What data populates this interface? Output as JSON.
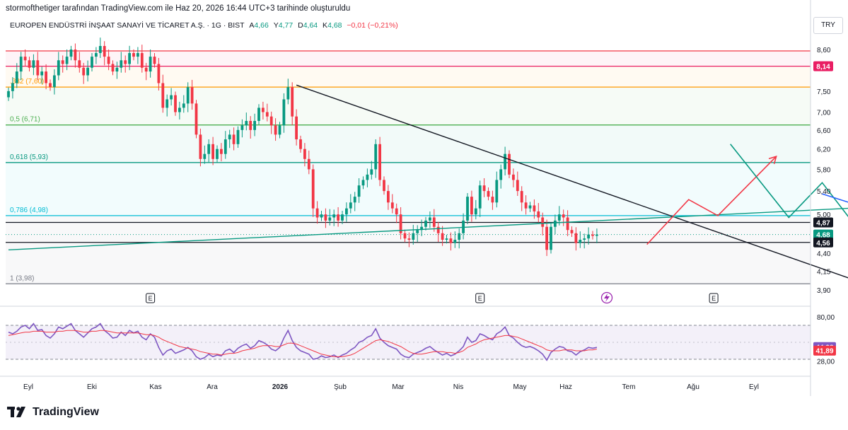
{
  "credit": "stormofthetiger tarafından TradingView.com ile Haz 20, 2026 16:44 UTC+3 tarihinde oluşturuldu",
  "legend": {
    "symbol": "EUROPEN ENDÜSTRİ İNŞAAT SANAYİ VE TİCARET A.Ş. · 1G · BIST",
    "open_label": "A",
    "open": "4,66",
    "high_label": "Y",
    "high": "4,77",
    "low_label": "D",
    "low": "4,64",
    "close_label": "K",
    "close": "4,68",
    "change": "−0,01 (−0,21%)"
  },
  "currency": "TRY",
  "brand": "TradingView",
  "colors": {
    "up": "#089981",
    "down": "#f23645",
    "rsi": "#7e57c2",
    "rsi_ma": "#f23645"
  },
  "icons": {
    "lightning": "lightning-icon",
    "earnings": "earnings-marker-icon",
    "logo": "tradingview-logo-icon"
  },
  "chart_data": {
    "type": "candlestick",
    "interval": "1G",
    "y_scale": "log",
    "ylim": [
      3.75,
      8.6
    ],
    "x_labels": [
      "Eyl",
      "Eki",
      "Kas",
      "Ara",
      "2026",
      "Şub",
      "Mar",
      "Nis",
      "May",
      "Haz",
      "Tem",
      "Ağu",
      "Eyl"
    ],
    "price_ticks": [
      "8,60",
      "7,50",
      "7,00",
      "6,60",
      "6,20",
      "5,80",
      "5,40",
      "5,00",
      "4,40",
      "4,15",
      "3,90"
    ],
    "price_labels": [
      {
        "text": "8,14",
        "value": 8.14,
        "color": "#e91e63"
      },
      {
        "text": "4,87",
        "value": 4.87,
        "color": "#131722"
      },
      {
        "text": "4,68",
        "value": 4.68,
        "color": "#089981"
      },
      {
        "text": "4,56",
        "value": 4.56,
        "color": "#131722"
      }
    ],
    "fibonacci": [
      {
        "label": "",
        "value": 8.56,
        "color": "#f23645"
      },
      {
        "label": "",
        "value": 8.14,
        "color": "#e91e63"
      },
      {
        "label": ".382 (7,60)",
        "value": 7.6,
        "color": "#ff9800"
      },
      {
        "label": "0,5 (6,71)",
        "value": 6.71,
        "color": "#4caf50"
      },
      {
        "label": "0,618 (5,93)",
        "value": 5.93,
        "color": "#089981"
      },
      {
        "label": "0,786 (4,98)",
        "value": 4.98,
        "color": "#00bcd4"
      },
      {
        "label": "1 (3,98)",
        "value": 3.98,
        "color": "#787b86"
      }
    ],
    "horizontal_levels": [
      4.87,
      4.56
    ],
    "close_series": [
      7.5,
      7.7,
      8.0,
      8.4,
      8.3,
      8.1,
      8.3,
      7.9,
      8.0,
      7.7,
      7.6,
      7.9,
      8.3,
      8.2,
      8.4,
      8.6,
      8.3,
      8.1,
      7.9,
      8.1,
      8.4,
      8.5,
      8.7,
      8.4,
      8.2,
      8.0,
      8.1,
      8.3,
      8.2,
      8.5,
      8.4,
      8.5,
      8.1,
      8.0,
      8.4,
      8.2,
      7.7,
      7.1,
      7.3,
      7.4,
      7.0,
      7.1,
      7.2,
      7.6,
      7.2,
      6.5,
      6.0,
      6.1,
      6.3,
      6.0,
      6.2,
      6.1,
      6.4,
      6.5,
      6.3,
      6.6,
      6.7,
      6.8,
      6.6,
      6.8,
      7.1,
      7.0,
      6.9,
      6.7,
      6.5,
      6.7,
      7.3,
      7.6,
      6.9,
      6.4,
      6.2,
      6.0,
      5.8,
      5.1,
      4.95,
      5.0,
      4.9,
      4.95,
      5.0,
      4.9,
      5.0,
      5.1,
      5.2,
      5.3,
      5.5,
      5.6,
      5.7,
      5.8,
      6.3,
      5.6,
      5.4,
      5.2,
      5.1,
      5.0,
      4.7,
      4.62,
      4.6,
      4.7,
      4.75,
      4.8,
      4.9,
      4.95,
      4.8,
      4.7,
      4.6,
      4.62,
      4.55,
      4.6,
      4.7,
      4.9,
      5.3,
      5.0,
      5.1,
      5.5,
      5.4,
      5.3,
      5.2,
      5.6,
      5.8,
      6.1,
      5.7,
      5.6,
      5.4,
      5.2,
      5.1,
      5.15,
      5.05,
      4.95,
      4.8,
      4.45,
      4.8,
      4.9,
      5.0,
      4.95,
      4.75,
      4.7,
      4.55,
      4.6,
      4.62,
      4.68,
      4.66,
      4.68
    ],
    "trendlines": [
      {
        "name": "falling",
        "from": {
          "i": 69,
          "v": 7.65
        },
        "to": {
          "i": 215,
          "v": 3.8
        },
        "color": "#131722"
      },
      {
        "name": "rising",
        "from": {
          "i": 0,
          "v": 4.45
        },
        "to": {
          "i": 285,
          "v": 5.4
        },
        "color": "#089981"
      }
    ],
    "projections": [
      {
        "color": "#f23645",
        "points": [
          [
            153,
            4.53
          ],
          [
            163,
            5.25
          ],
          [
            170,
            4.98
          ],
          [
            184,
            6.05
          ]
        ]
      },
      {
        "color": "#089981",
        "points": [
          [
            173,
            6.3
          ],
          [
            187,
            4.95
          ],
          [
            195,
            5.55
          ],
          [
            202,
            4.9
          ],
          [
            214,
            7.3
          ]
        ]
      },
      {
        "color": "#2962ff",
        "points": [
          [
            195,
            5.35
          ],
          [
            214,
            4.92
          ],
          [
            227,
            7.2
          ]
        ]
      }
    ],
    "events": [
      {
        "label": "E",
        "i": 34
      },
      {
        "label": "E",
        "i": 113
      },
      {
        "label": "E",
        "i": 169
      }
    ],
    "rsi": {
      "value": "44,38",
      "ma": "41,89",
      "ticks": [
        "80,00",
        "28,00"
      ],
      "ylim": [
        20,
        85
      ],
      "upper": 70,
      "lower": 30,
      "values": [
        62,
        60,
        63,
        68,
        70,
        66,
        72,
        64,
        65,
        58,
        55,
        60,
        68,
        66,
        69,
        72,
        64,
        60,
        56,
        61,
        66,
        68,
        72,
        64,
        60,
        55,
        56,
        62,
        58,
        64,
        61,
        63,
        56,
        53,
        60,
        56,
        44,
        35,
        40,
        42,
        37,
        39,
        41,
        44,
        40,
        33,
        30,
        32,
        36,
        33,
        35,
        34,
        40,
        42,
        38,
        43,
        46,
        48,
        43,
        46,
        52,
        50,
        47,
        42,
        40,
        44,
        55,
        64,
        52,
        44,
        40,
        38,
        36,
        30,
        31,
        34,
        32,
        33,
        35,
        32,
        35,
        37,
        41,
        44,
        50,
        52,
        56,
        58,
        66,
        55,
        50,
        46,
        44,
        42,
        36,
        33,
        32,
        36,
        38,
        40,
        43,
        45,
        41,
        38,
        35,
        37,
        34,
        36,
        40,
        45,
        56,
        50,
        52,
        60,
        58,
        55,
        53,
        60,
        63,
        68,
        58,
        55,
        50,
        46,
        44,
        45,
        43,
        40,
        36,
        29,
        38,
        42,
        45,
        44,
        40,
        39,
        35,
        39,
        41,
        44,
        43,
        44
      ],
      "ma_values": [
        58,
        59,
        60,
        61,
        62,
        62,
        63,
        63,
        63,
        62,
        62,
        62,
        63,
        63,
        64,
        64,
        64,
        63,
        62,
        62,
        63,
        63,
        64,
        64,
        63,
        62,
        61,
        61,
        61,
        61,
        61,
        61,
        60,
        59,
        59,
        58,
        56,
        53,
        51,
        49,
        47,
        45,
        44,
        43,
        42,
        41,
        39,
        38,
        37,
        36,
        36,
        35,
        36,
        37,
        37,
        38,
        40,
        41,
        42,
        43,
        45,
        46,
        46,
        46,
        45,
        45,
        47,
        49,
        49,
        48,
        46,
        44,
        42,
        40,
        38,
        36,
        35,
        34,
        33,
        33,
        33,
        34,
        35,
        37,
        40,
        43,
        46,
        49,
        52,
        53,
        52,
        51,
        49,
        47,
        45,
        42,
        39,
        37,
        36,
        36,
        37,
        38,
        39,
        39,
        39,
        38,
        38,
        37,
        38,
        40,
        44,
        46,
        48,
        51,
        53,
        54,
        55,
        56,
        57,
        58,
        58,
        57,
        56,
        54,
        52,
        50,
        48,
        46,
        44,
        41,
        40,
        40,
        40,
        41,
        41,
        41,
        40,
        40,
        40,
        41,
        41,
        42
      ]
    }
  }
}
